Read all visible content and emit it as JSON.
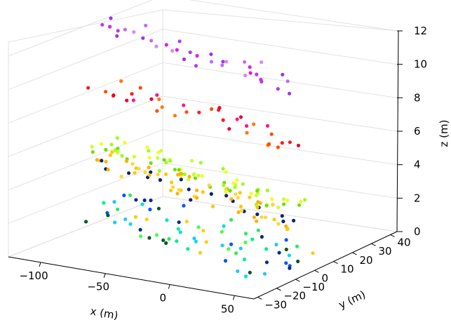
{
  "chart_data": {
    "type": "scatter",
    "title": "",
    "xlabel": "x (m)",
    "ylabel": "y (m)",
    "zlabel": "z (m)",
    "projection": "3d",
    "grid": true,
    "legend": "none",
    "xlim": [
      -125,
      65
    ],
    "ylim": [
      -32,
      42
    ],
    "zlim": [
      0,
      12
    ],
    "x_ticks": [
      -100,
      -50,
      0,
      50
    ],
    "x_tick_labels": [
      "−100",
      "−50",
      "0",
      "50"
    ],
    "y_ticks": [
      -30,
      -20,
      -10,
      0,
      10,
      20,
      30,
      40
    ],
    "y_tick_labels": [
      "−30",
      "−20",
      "−10",
      "0",
      "10",
      "20",
      "30",
      "40"
    ],
    "z_ticks": [
      0,
      2,
      4,
      6,
      8,
      10,
      12
    ],
    "z_tick_labels": [
      "0",
      "2",
      "4",
      "6",
      "8",
      "10",
      "12"
    ],
    "layers": [
      {
        "z": 11.4,
        "colors": [
          "#e01fe0",
          "#b23ee8",
          "#9a34f0",
          "#c26cf2",
          "#de86f5"
        ]
      },
      {
        "z": 7.9,
        "colors": [
          "#ff7a00",
          "#ff4d00",
          "#ff1a1a",
          "#e8002e",
          "#ff1493"
        ]
      },
      {
        "z": 4.3,
        "colors": [
          "#6fe000",
          "#9aff1a",
          "#c8ff2e",
          "#f0ff1a"
        ]
      },
      {
        "z": 3.3,
        "colors": [
          "#ffc800",
          "#ffb000",
          "#ffd633",
          "#10226b"
        ]
      },
      {
        "z": 0.6,
        "colors": [
          "#00f08c",
          "#2ee860",
          "#1ec8ff",
          "#0055ff",
          "#0b2a8a",
          "#0a5a1e",
          "#00e0e0",
          "#ffcc00",
          "#44ff44"
        ]
      }
    ],
    "series": [
      {
        "z": 11.4,
        "x": [
          -118,
          -102,
          -86,
          -70,
          -54,
          -38,
          -22,
          -6,
          10,
          26,
          42,
          58
        ],
        "y": [
          16,
          14,
          12,
          10,
          8,
          5,
          3,
          1,
          -1,
          -3,
          -6,
          -9
        ]
      },
      {
        "z": 7.9,
        "x": [
          -118,
          -102,
          -86,
          -70,
          -54,
          -38,
          -22,
          -6,
          10,
          26,
          42,
          58
        ],
        "y": [
          16,
          14,
          12,
          10,
          8,
          5,
          3,
          1,
          -1,
          -3,
          -6,
          -9
        ]
      },
      {
        "z": 4.3,
        "x": [
          -118,
          -102,
          -86,
          -70,
          -54,
          -38,
          -22,
          -6,
          10,
          26,
          42,
          58
        ],
        "y": [
          16,
          14,
          12,
          10,
          8,
          5,
          3,
          1,
          -1,
          -3,
          -6,
          -9
        ]
      },
      {
        "z": 3.3,
        "x": [
          -118,
          -102,
          -86,
          -70,
          -54,
          -38,
          -22,
          -6,
          10,
          26,
          42,
          58
        ],
        "y": [
          16,
          14,
          12,
          10,
          8,
          5,
          3,
          1,
          -1,
          -3,
          -6,
          -9
        ]
      },
      {
        "z": 0.6,
        "x": [
          -118,
          -102,
          -86,
          -70,
          -54,
          -38,
          -22,
          -6,
          10,
          26,
          42,
          58
        ],
        "y": [
          16,
          14,
          12,
          10,
          8,
          5,
          3,
          1,
          -1,
          -3,
          -6,
          -9
        ]
      }
    ]
  }
}
